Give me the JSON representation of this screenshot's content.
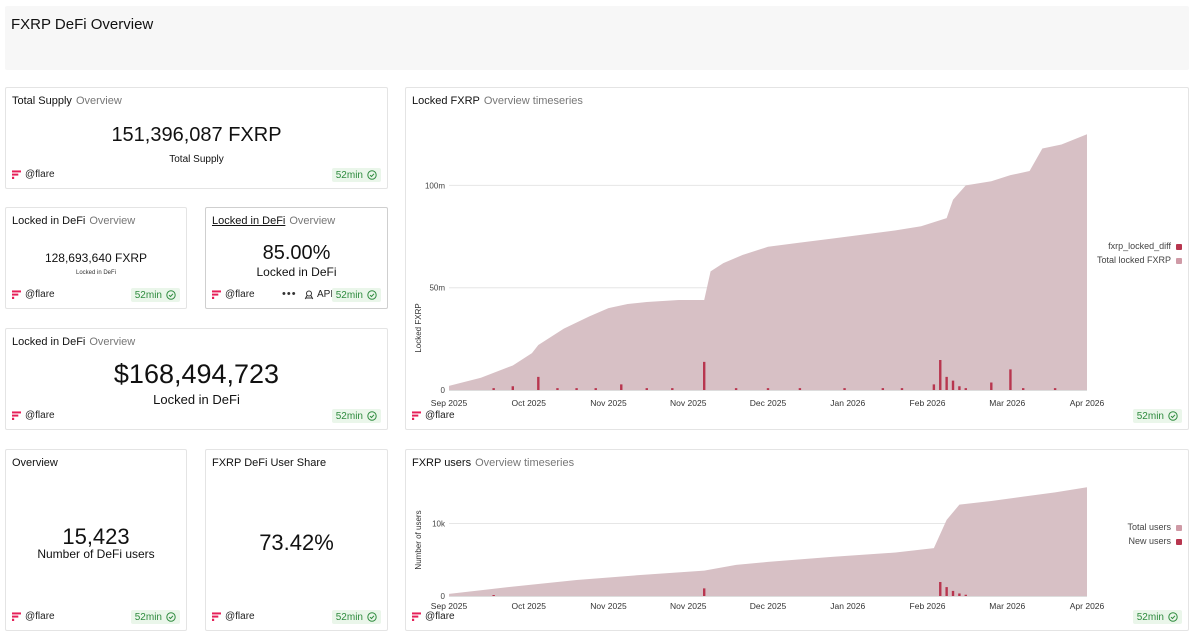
{
  "header": {
    "title": "FXRP DeFi Overview"
  },
  "common": {
    "brand": "@flare",
    "freshness": "52min"
  },
  "cards": {
    "total_supply": {
      "title": "Total Supply",
      "subtitle": "Overview",
      "value": "151,396,087 FXRP",
      "label": "Total Supply"
    },
    "locked_fxrp": {
      "title": "Locked in DeFi",
      "subtitle": "Overview",
      "value": "128,693,640 FXRP",
      "label": "Locked in DeFi"
    },
    "locked_pct": {
      "title": "Locked in DeFi",
      "subtitle": "Overview",
      "value": "85.00%",
      "label": "Locked in DeFi",
      "more": "•••",
      "api": "API"
    },
    "locked_usd": {
      "title": "Locked in DeFi",
      "subtitle": "Overview",
      "value": "$168,494,723",
      "label": "Locked in DeFi"
    },
    "users": {
      "title": "Overview",
      "value": "15,423",
      "label": "Number of DeFi users"
    },
    "user_share": {
      "title": "FXRP DeFi User Share",
      "value": "73.42%"
    },
    "locked_chart": {
      "title": "Locked FXRP",
      "subtitle": "Overview timeseries"
    },
    "users_chart": {
      "title": "FXRP users",
      "subtitle": "Overview timeseries"
    }
  },
  "colors": {
    "area": "#d7c0c5",
    "bar": "#b8364f",
    "brand": "#e62058",
    "badge_text": "#2e8b3e"
  },
  "chart_data": [
    {
      "type": "area",
      "title": "Locked FXRP",
      "xlabel": "",
      "ylabel": "Locked FXRP",
      "x_ticks": [
        "Sep 2025",
        "Oct 2025",
        "Nov 2025",
        "Nov 2025",
        "Dec 2025",
        "Jan 2026",
        "Feb 2026",
        "Mar 2026",
        "Apr 2026"
      ],
      "y_ticks": [
        "0",
        "50m",
        "100m"
      ],
      "ylim": [
        0,
        130
      ],
      "y_unit": "millions FXRP",
      "series": [
        {
          "name": "Total locked FXRP",
          "type": "area",
          "x": [
            0,
            0.05,
            0.1,
            0.13,
            0.14,
            0.18,
            0.22,
            0.25,
            0.28,
            0.31,
            0.36,
            0.4,
            0.41,
            0.43,
            0.46,
            0.5,
            0.55,
            0.6,
            0.65,
            0.7,
            0.74,
            0.78,
            0.79,
            0.81,
            0.85,
            0.88,
            0.91,
            0.93,
            0.96,
            1.0
          ],
          "values": [
            2,
            6,
            12,
            18,
            22,
            30,
            36,
            40,
            42,
            43,
            44,
            44,
            58,
            62,
            66,
            70,
            72,
            74,
            76,
            78,
            80,
            84,
            93,
            100,
            102,
            105,
            107,
            118,
            120,
            125
          ]
        },
        {
          "name": "fxrp_locked_diff",
          "type": "bar",
          "x": [
            0.07,
            0.1,
            0.14,
            0.17,
            0.2,
            0.23,
            0.27,
            0.31,
            0.35,
            0.4,
            0.45,
            0.5,
            0.55,
            0.62,
            0.68,
            0.71,
            0.76,
            0.77,
            0.78,
            0.79,
            0.8,
            0.81,
            0.85,
            0.88,
            0.9,
            0.95
          ],
          "values": [
            1,
            2,
            7,
            1,
            1,
            1,
            3,
            1,
            1,
            15,
            1,
            1,
            1,
            1,
            1,
            1,
            3,
            16,
            7,
            5,
            2,
            1,
            4,
            11,
            1,
            1
          ]
        }
      ]
    },
    {
      "type": "area",
      "title": "FXRP users",
      "xlabel": "",
      "ylabel": "Number of users",
      "x_ticks": [
        "Sep 2025",
        "Oct 2025",
        "Nov 2025",
        "Nov 2025",
        "Dec 2025",
        "Jan 2026",
        "Feb 2026",
        "Mar 2026",
        "Apr 2026"
      ],
      "y_ticks": [
        "0",
        "10k"
      ],
      "ylim": [
        0,
        16000
      ],
      "series": [
        {
          "name": "Total users",
          "type": "area",
          "x": [
            0,
            0.05,
            0.1,
            0.2,
            0.3,
            0.4,
            0.45,
            0.5,
            0.6,
            0.7,
            0.76,
            0.78,
            0.8,
            0.85,
            0.9,
            0.95,
            1.0
          ],
          "values": [
            300,
            800,
            1300,
            2200,
            2900,
            3500,
            4300,
            4700,
            5400,
            6000,
            6600,
            10500,
            12600,
            13100,
            13700,
            14300,
            15000
          ]
        },
        {
          "name": "New users",
          "type": "bar",
          "x": [
            0.07,
            0.4,
            0.77,
            0.78,
            0.79,
            0.8,
            0.81
          ],
          "values": [
            150,
            1200,
            2200,
            1400,
            800,
            400,
            200
          ]
        }
      ]
    }
  ]
}
